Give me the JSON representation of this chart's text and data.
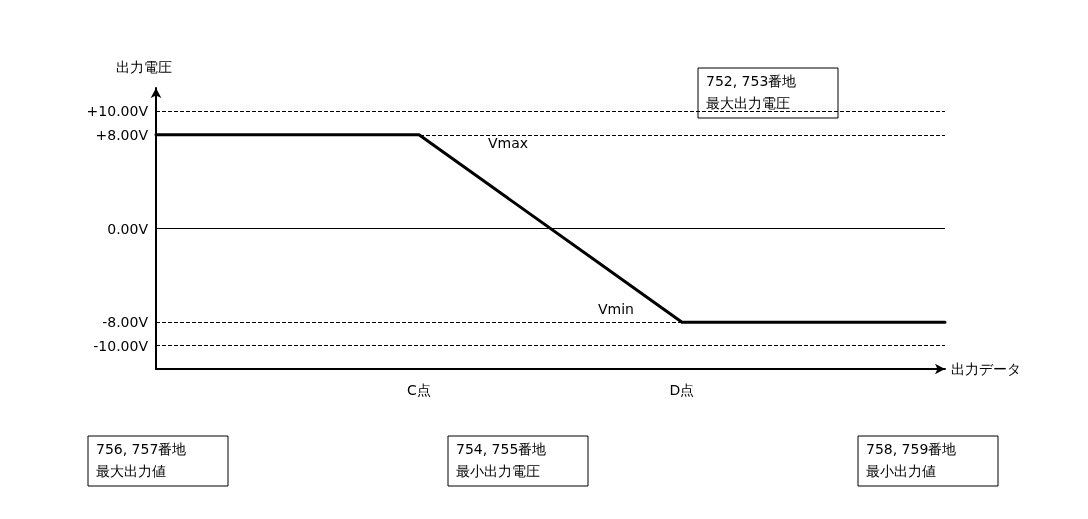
{
  "chart_data": {
    "type": "line",
    "xlabel": "出力データ",
    "ylabel": "出力電圧",
    "categories": [
      null,
      "C点",
      "D点",
      null
    ],
    "values": [
      8,
      8,
      -8,
      -8
    ],
    "color": "#000000",
    "marker": "none",
    "line_style": "solid",
    "grid": false,
    "ylim": [
      -12,
      12
    ],
    "yticks": [
      {
        "value": 10,
        "label": "+10.00V"
      },
      {
        "value": 8,
        "label": "+8.00V"
      },
      {
        "value": 0,
        "label": "0.00V"
      },
      {
        "value": -8,
        "label": "-8.00V"
      },
      {
        "value": -10,
        "label": "-10.00V"
      }
    ],
    "ref_lines": [
      {
        "axis": "y",
        "value": 10,
        "line_style": "dashed",
        "color": "#000000"
      },
      {
        "axis": "y",
        "value": 8,
        "line_style": "dashed",
        "color": "#000000"
      },
      {
        "axis": "y",
        "value": 0,
        "line_style": "solid",
        "color": "#000000"
      },
      {
        "axis": "y",
        "value": -8,
        "line_style": "dashed",
        "color": "#000000"
      },
      {
        "axis": "y",
        "value": -10,
        "line_style": "dashed",
        "color": "#000000"
      }
    ],
    "annotations": [
      "Vmax",
      "Vmin",
      "752, 753番地",
      "最大出力電圧",
      "756, 757番地",
      "最大出力値",
      "754, 755番地",
      "最小出力電圧",
      "758, 759番地",
      "最小出力値"
    ]
  }
}
